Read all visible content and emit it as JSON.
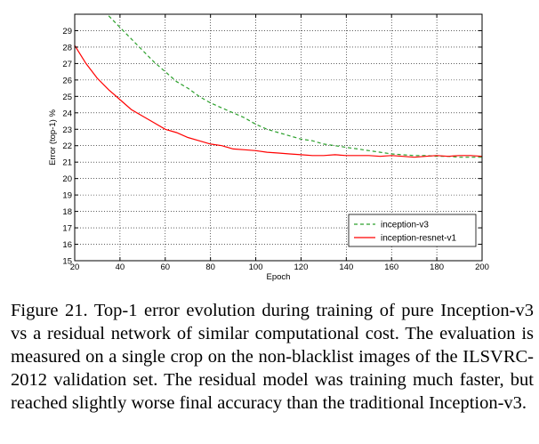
{
  "chart_data": {
    "type": "line",
    "title": "",
    "xlabel": "Epoch",
    "ylabel": "Error (top-1) %",
    "xlim": [
      20,
      200
    ],
    "ylim": [
      15,
      30
    ],
    "xticks": [
      20,
      40,
      60,
      80,
      100,
      120,
      140,
      160,
      180,
      200
    ],
    "yticks": [
      15,
      16,
      17,
      18,
      19,
      20,
      21,
      22,
      23,
      24,
      25,
      26,
      27,
      28,
      29
    ],
    "grid": true,
    "legend_position": "lower-right",
    "series": [
      {
        "name": "inception-v3",
        "color": "#2ca02c",
        "style": "dashed",
        "x": [
          35,
          40,
          45,
          50,
          55,
          60,
          65,
          70,
          75,
          80,
          85,
          90,
          95,
          100,
          105,
          110,
          115,
          120,
          125,
          130,
          135,
          140,
          145,
          150,
          155,
          160,
          165,
          170,
          175,
          180,
          185,
          190,
          195,
          200
        ],
        "y": [
          29.9,
          29.2,
          28.5,
          27.8,
          27.1,
          26.5,
          25.9,
          25.5,
          25.0,
          24.6,
          24.3,
          24.0,
          23.7,
          23.3,
          23.0,
          22.8,
          22.6,
          22.4,
          22.3,
          22.1,
          22.0,
          21.9,
          21.8,
          21.7,
          21.6,
          21.5,
          21.45,
          21.4,
          21.4,
          21.35,
          21.35,
          21.3,
          21.3,
          21.3
        ]
      },
      {
        "name": "inception-resnet-v1",
        "color": "#ff0000",
        "style": "solid",
        "x": [
          20,
          25,
          30,
          35,
          40,
          45,
          50,
          55,
          60,
          65,
          70,
          75,
          80,
          85,
          90,
          95,
          100,
          105,
          110,
          115,
          120,
          125,
          130,
          135,
          140,
          145,
          150,
          155,
          160,
          165,
          170,
          175,
          180,
          185,
          190,
          195,
          200
        ],
        "y": [
          28.1,
          27.0,
          26.1,
          25.4,
          24.8,
          24.2,
          23.8,
          23.4,
          23.0,
          22.8,
          22.5,
          22.3,
          22.1,
          22.0,
          21.8,
          21.75,
          21.7,
          21.6,
          21.55,
          21.5,
          21.45,
          21.4,
          21.4,
          21.45,
          21.4,
          21.4,
          21.4,
          21.35,
          21.4,
          21.35,
          21.3,
          21.35,
          21.4,
          21.35,
          21.4,
          21.4,
          21.35
        ]
      }
    ]
  },
  "caption": "Figure 21. Top-1 error evolution during training of pure Inception-v3 vs a residual network of similar computational cost. The evaluation is measured on a single crop on the non-blacklist images of the ILSVRC-2012 validation set. The residual model was training much faster, but reached slightly worse final accuracy than the traditional Inception-v3."
}
